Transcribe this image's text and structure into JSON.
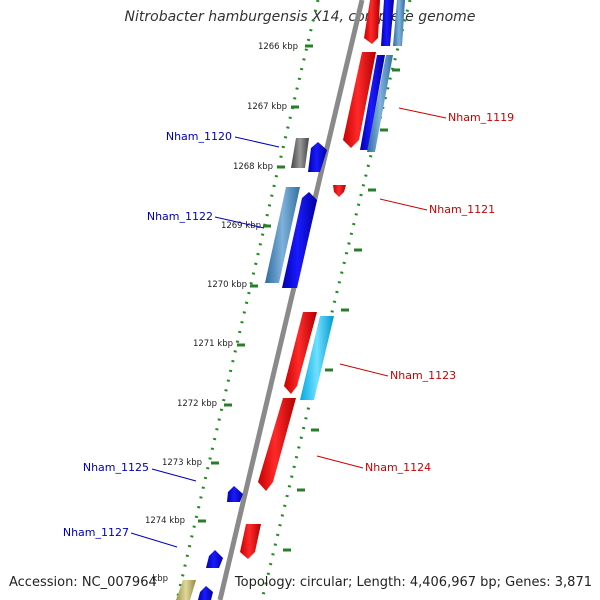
{
  "title": "Nitrobacter hamburgensis X14, complete genome",
  "accession_label": "Accession: NC_007964",
  "topology_label": "Topology: circular; Length: 4,406,967 bp; Genes: 3,871",
  "ticks": [
    {
      "label": "1266 kbp"
    },
    {
      "label": "1267 kbp"
    },
    {
      "label": "1268 kbp"
    },
    {
      "label": "1269 kbp"
    },
    {
      "label": "1270 kbp"
    },
    {
      "label": "1271 kbp"
    },
    {
      "label": "1272 kbp"
    },
    {
      "label": "1273 kbp"
    },
    {
      "label": "1274 kbp"
    },
    {
      "label": "kbp"
    }
  ],
  "gene_labels": [
    {
      "name": "Nham_1119",
      "strand": "forward"
    },
    {
      "name": "Nham_1120",
      "strand": "reverse"
    },
    {
      "name": "Nham_1121",
      "strand": "forward"
    },
    {
      "name": "Nham_1122",
      "strand": "reverse"
    },
    {
      "name": "Nham_1123",
      "strand": "forward"
    },
    {
      "name": "Nham_1124",
      "strand": "forward"
    },
    {
      "name": "Nham_1125",
      "strand": "reverse"
    },
    {
      "name": "Nham_1127",
      "strand": "reverse"
    }
  ],
  "colors": {
    "forward_label": "#cc0000",
    "reverse_label": "#0000bb",
    "backbone": "#888888",
    "gc_ticks": "#2e8b2e",
    "cds_forward": "#ff0000",
    "cds_reverse": "#0000ee",
    "cog_blue": "#1e90ff",
    "cog_cyan": "#00bfff",
    "cog_steel": "#4682b4",
    "cog_gray": "#666666",
    "cog_olive": "#bdb76b"
  }
}
